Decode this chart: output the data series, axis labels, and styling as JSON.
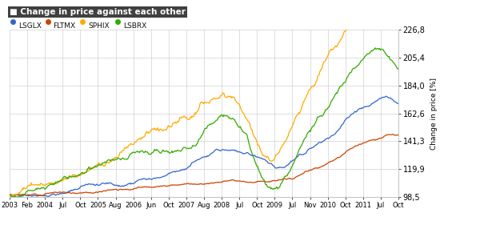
{
  "title": "Change in price against each other",
  "ylabel": "Change in price [%]",
  "ylim": [
    98.5,
    226.8
  ],
  "yticks": [
    98.5,
    119.9,
    141.3,
    162.6,
    184.0,
    205.4,
    226.8
  ],
  "xlabel_ticks": [
    "2003",
    "Feb",
    "2004",
    "Jul",
    "Oct",
    "2005",
    "Aug",
    "2006",
    "Jun",
    "Oct",
    "2007",
    "Aug",
    "2008",
    "Jul",
    "Oct",
    "2009",
    "Jul",
    "Nov",
    "2010",
    "Oct",
    "2011",
    "Jul",
    "Oct"
  ],
  "series": [
    {
      "label": "LSGLX",
      "color": "#3366CC"
    },
    {
      "label": "FLTMX",
      "color": "#CC4400"
    },
    {
      "label": "SPHIX",
      "color": "#FFAA00"
    },
    {
      "label": "LSBRX",
      "color": "#33AA00"
    }
  ],
  "bg_color": "#ffffff",
  "grid_color": "#d0d0d0",
  "title_bg": "#404040",
  "title_color": "#ffffff"
}
